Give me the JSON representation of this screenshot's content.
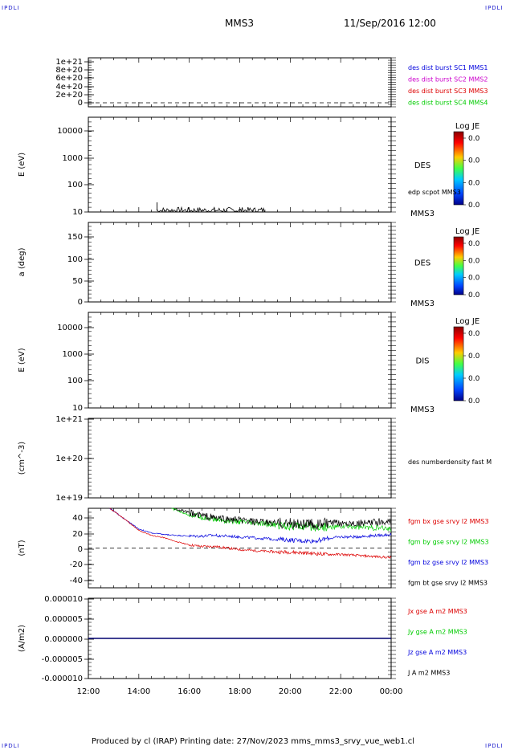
{
  "corner_label": "IPDLI",
  "header": {
    "spacecraft": "MMS3",
    "datetime": "11/Sep/2016 12:00"
  },
  "footer": "Produced by cl (IRAP)   Printing date: 27/Nov/2023   mms_mms3_srvy_vue_web1.cl",
  "x_ticks": [
    "12:00",
    "14:00",
    "16:00",
    "18:00",
    "20:00",
    "22:00",
    "00:00"
  ],
  "colors": {
    "red": "#dd0000",
    "green": "#00cc00",
    "blue": "#0000dd",
    "magenta": "#cc00cc",
    "black": "#000000"
  },
  "chart_data": [
    {
      "type": "line",
      "ylabel": "",
      "y_ticks": [
        "1e+21",
        "8e+20",
        "6e+20",
        "4e+20",
        "2e+20",
        "0"
      ],
      "legend": [
        {
          "text": "des dist burst SC1 MMS1",
          "color": "#0000dd"
        },
        {
          "text": "des dist burst SC2 MMS2",
          "color": "#cc00cc"
        },
        {
          "text": "des dist burst SC3 MMS3",
          "color": "#dd0000"
        },
        {
          "text": "des dist burst SC4 MMS4",
          "color": "#00cc00"
        }
      ],
      "reference_line": 0
    },
    {
      "type": "heatmap",
      "ylabel": "E (eV)",
      "y_scale": "log",
      "y_ticks": [
        "10000",
        "1000",
        "100",
        "10"
      ],
      "side_label": "DES",
      "colorbar": {
        "title": "Log JE",
        "ticks": [
          "0.0",
          "0.0",
          "0.0",
          "0.0"
        ]
      },
      "overlay_label": "edp scpot MMS3",
      "corner_label": "MMS3",
      "overlay_series": {
        "name": "edp scpot MMS3",
        "x_hours": [
          14.7,
          19.0
        ],
        "typical_value_eV": 12,
        "spike_at_hours": 14.72,
        "spike_value_eV": 30
      }
    },
    {
      "type": "heatmap",
      "ylabel": "a (deg)",
      "y_ticks": [
        "150",
        "100",
        "50",
        "0"
      ],
      "ylim": [
        0,
        180
      ],
      "side_label": "DES",
      "colorbar": {
        "title": "Log JE",
        "ticks": [
          "0.0",
          "0.0",
          "0.0",
          "0.0"
        ]
      },
      "corner_label": "MMS3"
    },
    {
      "type": "heatmap",
      "ylabel": "E (eV)",
      "y_scale": "log",
      "y_ticks": [
        "10000",
        "1000",
        "100",
        "10"
      ],
      "side_label": "DIS",
      "colorbar": {
        "title": "Log JE",
        "ticks": [
          "0.0",
          "0.0",
          "0.0",
          "0.0"
        ]
      },
      "corner_label": "MMS3"
    },
    {
      "type": "line",
      "ylabel": "(cm^-3)",
      "y_scale": "log",
      "y_ticks": [
        "1e+21",
        "1e+20",
        "1e+19"
      ],
      "legend": [
        {
          "text": "des numberdensity fast M",
          "color": "#000000"
        }
      ]
    },
    {
      "type": "line",
      "ylabel": "(nT)",
      "y_ticks": [
        "40",
        "20",
        "0",
        "-20",
        "-40"
      ],
      "ylim": [
        -50,
        50
      ],
      "reference_line": 0,
      "legend": [
        {
          "text": "fgm bx gse srvy l2 MMS3",
          "color": "#dd0000"
        },
        {
          "text": "fgm by gse srvy l2 MMS3",
          "color": "#00cc00"
        },
        {
          "text": "fgm bz gse srvy l2 MMS3",
          "color": "#0000dd"
        },
        {
          "text": "fgm bt gse srvy l2 MMS3",
          "color": "#000000"
        }
      ],
      "series": [
        {
          "name": "fgm bx gse srvy l2 MMS3",
          "color": "#dd0000",
          "x": [
            12.85,
            13.5,
            14.0,
            14.5,
            15.0,
            15.5,
            16.0,
            16.5,
            17.0,
            17.5,
            18.0,
            18.5,
            19.0,
            19.5,
            20.0,
            20.5,
            21.0,
            21.5,
            22.0,
            22.5,
            23.0,
            23.5,
            24.0
          ],
          "y": [
            50,
            35,
            22,
            16,
            13,
            8,
            4,
            2,
            2,
            0,
            -2,
            -3,
            -4,
            -5,
            -5,
            -6,
            -7,
            -8,
            -8,
            -9,
            -10,
            -11,
            -12
          ]
        },
        {
          "name": "fgm by gse srvy l2 MMS3",
          "color": "#00cc00",
          "x": [
            15.3,
            15.7,
            16.0,
            16.5,
            17.0,
            17.5,
            18.0,
            18.5,
            19.0,
            19.5,
            20.0,
            20.5,
            21.0,
            21.5,
            22.0,
            22.5,
            23.0,
            23.5,
            24.0
          ],
          "y": [
            50,
            45,
            42,
            39,
            36,
            34,
            33,
            31,
            30,
            29,
            28,
            27,
            27,
            26,
            27,
            27,
            26,
            25,
            24
          ]
        },
        {
          "name": "fgm bz gse srvy l2 MMS3",
          "color": "#0000dd",
          "x": [
            12.85,
            13.5,
            14.0,
            14.5,
            15.0,
            15.5,
            16.0,
            16.5,
            17.0,
            17.5,
            18.0,
            18.5,
            19.0,
            19.5,
            20.0,
            20.5,
            21.0,
            21.5,
            22.0,
            22.5,
            23.0,
            23.5,
            24.0
          ],
          "y": [
            50,
            35,
            24,
            19,
            17,
            16,
            15,
            15,
            16,
            15,
            14,
            13,
            12,
            11,
            10,
            9,
            9,
            12,
            14,
            14,
            15,
            16,
            17
          ]
        },
        {
          "name": "fgm bt gse srvy l2 MMS3",
          "color": "#000000",
          "x": [
            15.4,
            15.7,
            16.0,
            16.5,
            17.0,
            17.5,
            18.0,
            18.5,
            19.0,
            19.5,
            20.0,
            20.5,
            21.0,
            21.5,
            22.0,
            22.5,
            23.0,
            23.5,
            24.0
          ],
          "y": [
            50,
            47,
            44,
            41,
            38,
            36,
            35,
            33,
            32,
            31,
            31,
            30,
            30,
            31,
            31,
            32,
            31,
            33,
            34
          ]
        }
      ]
    },
    {
      "type": "line",
      "ylabel": "(A/m2)",
      "y_ticks": [
        "0.000010",
        "0.000005",
        "0.000000",
        "-0.000005",
        "-0.000010"
      ],
      "ylim": [
        -1e-05,
        1e-05
      ],
      "legend": [
        {
          "text": "Jx gse A m2 MMS3",
          "color": "#dd0000"
        },
        {
          "text": "Jy gse A m2 MMS3",
          "color": "#00cc00"
        },
        {
          "text": "Jz gse A m2 MMS3",
          "color": "#0000dd"
        },
        {
          "text": "J A m2 MMS3",
          "color": "#000000"
        }
      ],
      "series": [
        {
          "name": "J A m2 MMS3",
          "color": "#000000",
          "x": [
            12,
            24
          ],
          "y": [
            0,
            0
          ]
        },
        {
          "name": "Jz gse A m2 MMS3",
          "color": "#0000dd",
          "x": [
            12,
            24
          ],
          "y": [
            0,
            0
          ]
        }
      ]
    }
  ]
}
